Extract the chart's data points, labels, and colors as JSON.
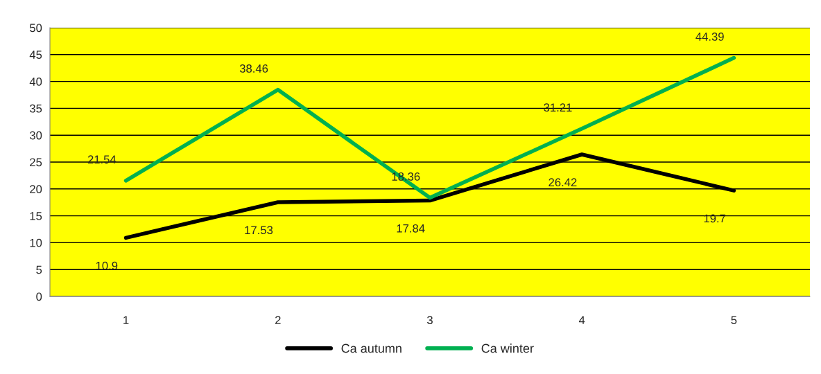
{
  "chart_data": {
    "type": "line",
    "categories": [
      "1",
      "2",
      "3",
      "4",
      "5"
    ],
    "series": [
      {
        "name": "Ca autumn",
        "color": "#000000",
        "values": [
          10.9,
          17.53,
          17.84,
          26.42,
          19.7
        ]
      },
      {
        "name": "Ca winter",
        "color": "#00b050",
        "values": [
          21.54,
          38.46,
          18.36,
          31.21,
          44.39
        ]
      }
    ],
    "ylim": [
      0,
      50
    ],
    "yticks": [
      0,
      5,
      10,
      15,
      20,
      25,
      30,
      35,
      40,
      45,
      50
    ],
    "grid": "y",
    "legend": "bottom",
    "data_labels": true,
    "marker": "none",
    "line_style": "solid"
  }
}
